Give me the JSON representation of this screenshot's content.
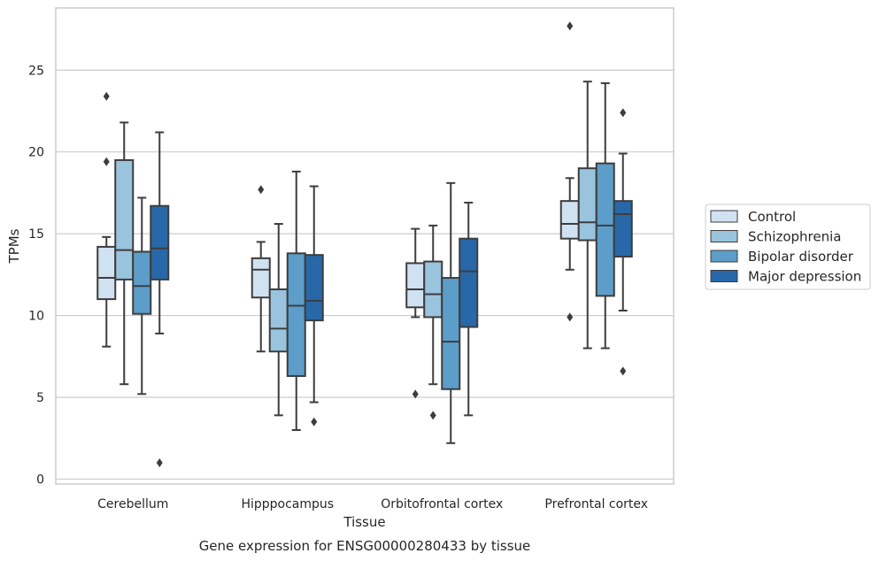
{
  "chart_data": {
    "type": "box",
    "title": "",
    "caption": "Gene expression for ENSG00000280433 by tissue",
    "xlabel": "Tissue",
    "ylabel": "TPMs",
    "ylim": [
      -0.3,
      28.8
    ],
    "yticks": [
      0,
      5,
      10,
      15,
      20,
      25
    ],
    "grid": "horizontal",
    "legend_position": "right",
    "categories": [
      "Cerebellum",
      "Hipppocampus",
      "Orbitofrontal cortex",
      "Prefrontal cortex"
    ],
    "series": [
      {
        "name": "Control",
        "color": "#d0e1f2",
        "boxes": [
          {
            "whislo": 8.1,
            "q1": 11.0,
            "med": 12.3,
            "q3": 14.2,
            "whishi": 14.8,
            "fliers": [
              19.4,
              23.4
            ]
          },
          {
            "whislo": 7.8,
            "q1": 11.1,
            "med": 12.8,
            "q3": 13.5,
            "whishi": 14.5,
            "fliers": [
              17.7
            ]
          },
          {
            "whislo": 9.9,
            "q1": 10.5,
            "med": 11.6,
            "q3": 13.2,
            "whishi": 15.3,
            "fliers": [
              5.2
            ]
          },
          {
            "whislo": 12.8,
            "q1": 14.7,
            "med": 15.6,
            "q3": 17.0,
            "whishi": 18.4,
            "fliers": [
              9.9,
              27.7
            ]
          }
        ]
      },
      {
        "name": "Schizophrenia",
        "color": "#9ac3dd",
        "boxes": [
          {
            "whislo": 5.8,
            "q1": 12.2,
            "med": 14.0,
            "q3": 19.5,
            "whishi": 21.8,
            "fliers": []
          },
          {
            "whislo": 3.9,
            "q1": 7.8,
            "med": 9.2,
            "q3": 11.6,
            "whishi": 15.6,
            "fliers": []
          },
          {
            "whislo": 5.8,
            "q1": 9.9,
            "med": 11.3,
            "q3": 13.3,
            "whishi": 15.5,
            "fliers": [
              3.9
            ]
          },
          {
            "whislo": 8.0,
            "q1": 14.6,
            "med": 15.7,
            "q3": 19.0,
            "whishi": 24.3,
            "fliers": []
          }
        ]
      },
      {
        "name": "Bipolar disorder",
        "color": "#5c9ec9",
        "boxes": [
          {
            "whislo": 5.2,
            "q1": 10.1,
            "med": 11.8,
            "q3": 13.9,
            "whishi": 17.2,
            "fliers": []
          },
          {
            "whislo": 3.0,
            "q1": 6.3,
            "med": 10.6,
            "q3": 13.8,
            "whishi": 18.8,
            "fliers": []
          },
          {
            "whislo": 2.2,
            "q1": 5.5,
            "med": 8.4,
            "q3": 12.3,
            "whishi": 18.1,
            "fliers": []
          },
          {
            "whislo": 8.0,
            "q1": 11.2,
            "med": 15.5,
            "q3": 19.3,
            "whishi": 24.2,
            "fliers": []
          }
        ]
      },
      {
        "name": "Major depression",
        "color": "#2868a9",
        "boxes": [
          {
            "whislo": 8.9,
            "q1": 12.2,
            "med": 14.1,
            "q3": 16.7,
            "whishi": 21.2,
            "fliers": [
              1.0
            ]
          },
          {
            "whislo": 4.7,
            "q1": 9.7,
            "med": 10.9,
            "q3": 13.7,
            "whishi": 17.9,
            "fliers": [
              3.5
            ]
          },
          {
            "whislo": 3.9,
            "q1": 9.3,
            "med": 12.7,
            "q3": 14.7,
            "whishi": 16.9,
            "fliers": []
          },
          {
            "whislo": 10.3,
            "q1": 13.6,
            "med": 16.2,
            "q3": 17.0,
            "whishi": 19.9,
            "fliers": [
              6.6,
              22.4
            ]
          }
        ]
      }
    ],
    "colors": {
      "line": "#3d3d3d",
      "grid": "#cccccc",
      "frame": "#cccccc"
    }
  }
}
